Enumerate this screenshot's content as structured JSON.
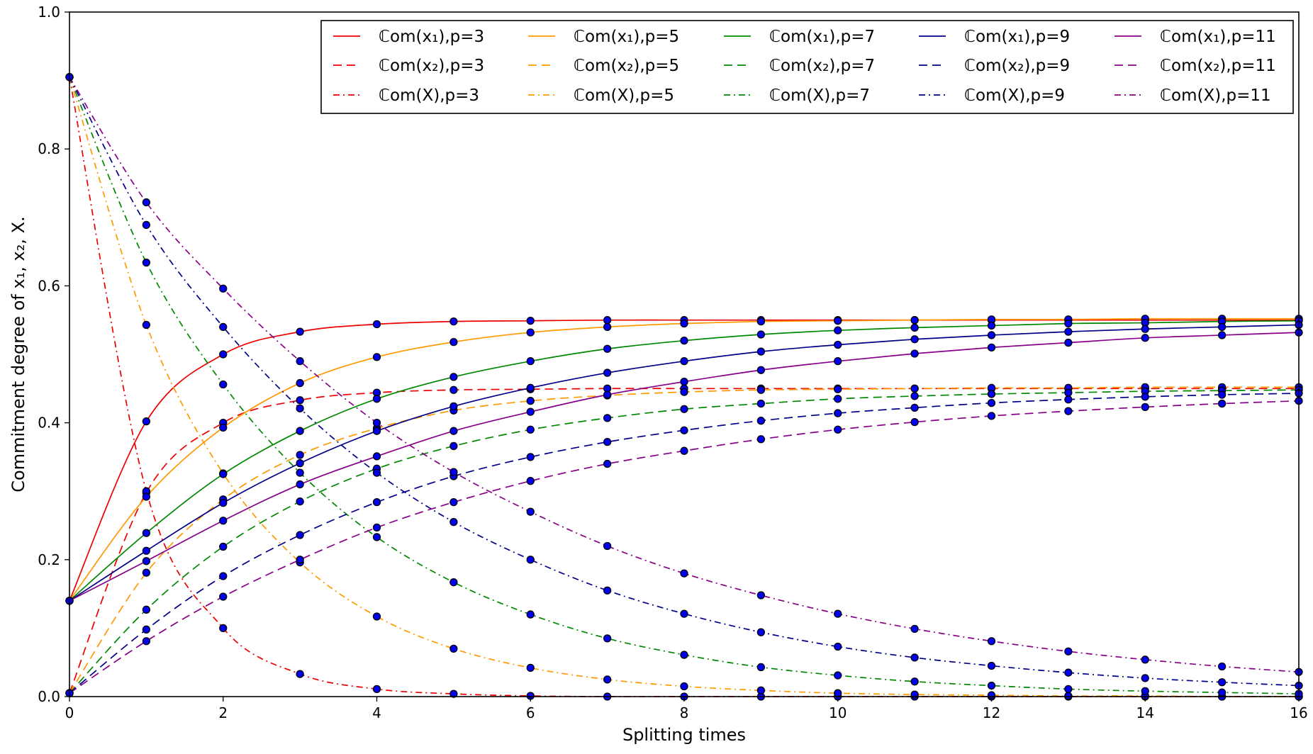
{
  "chart_data": {
    "type": "line",
    "xlabel": "Splitting times",
    "ylabel": "Commitment degree of x₁, x₂, X.",
    "xlim": [
      0,
      16
    ],
    "ylim": [
      0.0,
      1.0
    ],
    "xticks": [
      "0",
      "2",
      "4",
      "6",
      "8",
      "10",
      "12",
      "14",
      "16"
    ],
    "yticks": [
      "0.0",
      "0.2",
      "0.4",
      "0.6",
      "0.8",
      "1.0"
    ],
    "grid": false,
    "legend_position": "top-right",
    "legend_columns": 5,
    "marker": {
      "shape": "circle",
      "fill": "#0000ee",
      "edge": "#000000"
    },
    "x": [
      0,
      1,
      2,
      3,
      4,
      5,
      6,
      7,
      8,
      9,
      10,
      11,
      12,
      13,
      14,
      15,
      16
    ],
    "series": [
      {
        "name": "ℂom(x₁),p=3",
        "p": 3,
        "kind": "x1",
        "color": "#ee0000",
        "dash": "solid",
        "values": [
          0.14,
          0.402,
          0.5,
          0.533,
          0.544,
          0.548,
          0.549,
          0.55,
          0.55,
          0.55,
          0.55,
          0.55,
          0.55,
          0.55,
          0.55,
          0.55,
          0.55
        ]
      },
      {
        "name": "ℂom(x₂),p=3",
        "p": 3,
        "kind": "x2",
        "color": "#ee0000",
        "dash": "dashed",
        "values": [
          0.005,
          0.298,
          0.4,
          0.433,
          0.444,
          0.448,
          0.449,
          0.45,
          0.45,
          0.45,
          0.45,
          0.45,
          0.45,
          0.45,
          0.45,
          0.45,
          0.45
        ]
      },
      {
        "name": "ℂom(X),p=3",
        "p": 3,
        "kind": "X",
        "color": "#ee0000",
        "dash": "dashdot",
        "values": [
          0.905,
          0.3,
          0.1,
          0.033,
          0.011,
          0.004,
          0.001,
          0.0,
          0.0,
          0.0,
          0.0,
          0.0,
          0.0,
          0.0,
          0.0,
          0.0,
          0.0
        ]
      },
      {
        "name": "ℂom(x₁),p=5",
        "p": 5,
        "kind": "x1",
        "color": "#ff9900",
        "dash": "solid",
        "values": [
          0.14,
          0.292,
          0.393,
          0.458,
          0.496,
          0.518,
          0.532,
          0.54,
          0.545,
          0.548,
          0.549,
          0.55,
          0.551,
          0.551,
          0.552,
          0.552,
          0.552
        ]
      },
      {
        "name": "ℂom(x₂),p=5",
        "p": 5,
        "kind": "x2",
        "color": "#ff9900",
        "dash": "dashed",
        "values": [
          0.005,
          0.181,
          0.288,
          0.353,
          0.392,
          0.418,
          0.432,
          0.44,
          0.445,
          0.448,
          0.449,
          0.45,
          0.451,
          0.451,
          0.452,
          0.452,
          0.452
        ]
      },
      {
        "name": "ℂom(X),p=5",
        "p": 5,
        "kind": "X",
        "color": "#ff9900",
        "dash": "dashdot",
        "values": [
          0.905,
          0.543,
          0.326,
          0.196,
          0.117,
          0.07,
          0.042,
          0.025,
          0.015,
          0.009,
          0.005,
          0.003,
          0.002,
          0.001,
          0.001,
          0.0,
          0.0
        ]
      },
      {
        "name": "ℂom(x₁),p=7",
        "p": 7,
        "kind": "x1",
        "color": "#008800",
        "dash": "solid",
        "values": [
          0.14,
          0.239,
          0.325,
          0.388,
          0.435,
          0.467,
          0.49,
          0.508,
          0.52,
          0.529,
          0.535,
          0.539,
          0.542,
          0.545,
          0.546,
          0.548,
          0.549
        ]
      },
      {
        "name": "ℂom(x₂),p=7",
        "p": 7,
        "kind": "x2",
        "color": "#008800",
        "dash": "dashed",
        "values": [
          0.005,
          0.127,
          0.219,
          0.285,
          0.333,
          0.366,
          0.39,
          0.407,
          0.42,
          0.428,
          0.435,
          0.439,
          0.442,
          0.444,
          0.446,
          0.447,
          0.448
        ]
      },
      {
        "name": "ℂom(X),p=7",
        "p": 7,
        "kind": "X",
        "color": "#008800",
        "dash": "dashdot",
        "values": [
          0.905,
          0.634,
          0.456,
          0.327,
          0.233,
          0.167,
          0.12,
          0.085,
          0.061,
          0.043,
          0.031,
          0.022,
          0.016,
          0.011,
          0.008,
          0.006,
          0.004
        ]
      },
      {
        "name": "ℂom(x₁),p=9",
        "p": 9,
        "kind": "x1",
        "color": "#000088",
        "dash": "solid",
        "values": [
          0.14,
          0.213,
          0.283,
          0.341,
          0.388,
          0.424,
          0.451,
          0.473,
          0.49,
          0.504,
          0.514,
          0.522,
          0.528,
          0.533,
          0.537,
          0.54,
          0.543
        ]
      },
      {
        "name": "ℂom(x₂),p=9",
        "p": 9,
        "kind": "x2",
        "color": "#000088",
        "dash": "dashed",
        "values": [
          0.005,
          0.098,
          0.176,
          0.236,
          0.284,
          0.322,
          0.35,
          0.372,
          0.389,
          0.403,
          0.414,
          0.422,
          0.429,
          0.434,
          0.438,
          0.441,
          0.443
        ]
      },
      {
        "name": "ℂom(X),p=9",
        "p": 9,
        "kind": "X",
        "color": "#000088",
        "dash": "dashdot",
        "values": [
          0.905,
          0.689,
          0.54,
          0.421,
          0.327,
          0.255,
          0.2,
          0.155,
          0.121,
          0.094,
          0.073,
          0.057,
          0.045,
          0.035,
          0.027,
          0.021,
          0.016
        ]
      },
      {
        "name": "ℂom(x₁),p=11",
        "p": 11,
        "kind": "x1",
        "color": "#880088",
        "dash": "solid",
        "values": [
          0.14,
          0.198,
          0.257,
          0.31,
          0.351,
          0.388,
          0.416,
          0.441,
          0.46,
          0.477,
          0.49,
          0.501,
          0.51,
          0.517,
          0.524,
          0.528,
          0.532
        ]
      },
      {
        "name": "ℂom(x₂),p=11",
        "p": 11,
        "kind": "x2",
        "color": "#880088",
        "dash": "dashed",
        "values": [
          0.005,
          0.081,
          0.146,
          0.2,
          0.247,
          0.284,
          0.315,
          0.34,
          0.359,
          0.376,
          0.39,
          0.401,
          0.41,
          0.417,
          0.423,
          0.428,
          0.432
        ]
      },
      {
        "name": "ℂom(X),p=11",
        "p": 11,
        "kind": "X",
        "color": "#880088",
        "dash": "dashdot",
        "values": [
          0.905,
          0.722,
          0.596,
          0.49,
          0.4,
          0.328,
          0.27,
          0.22,
          0.18,
          0.148,
          0.121,
          0.099,
          0.081,
          0.066,
          0.054,
          0.044,
          0.036
        ]
      }
    ]
  }
}
